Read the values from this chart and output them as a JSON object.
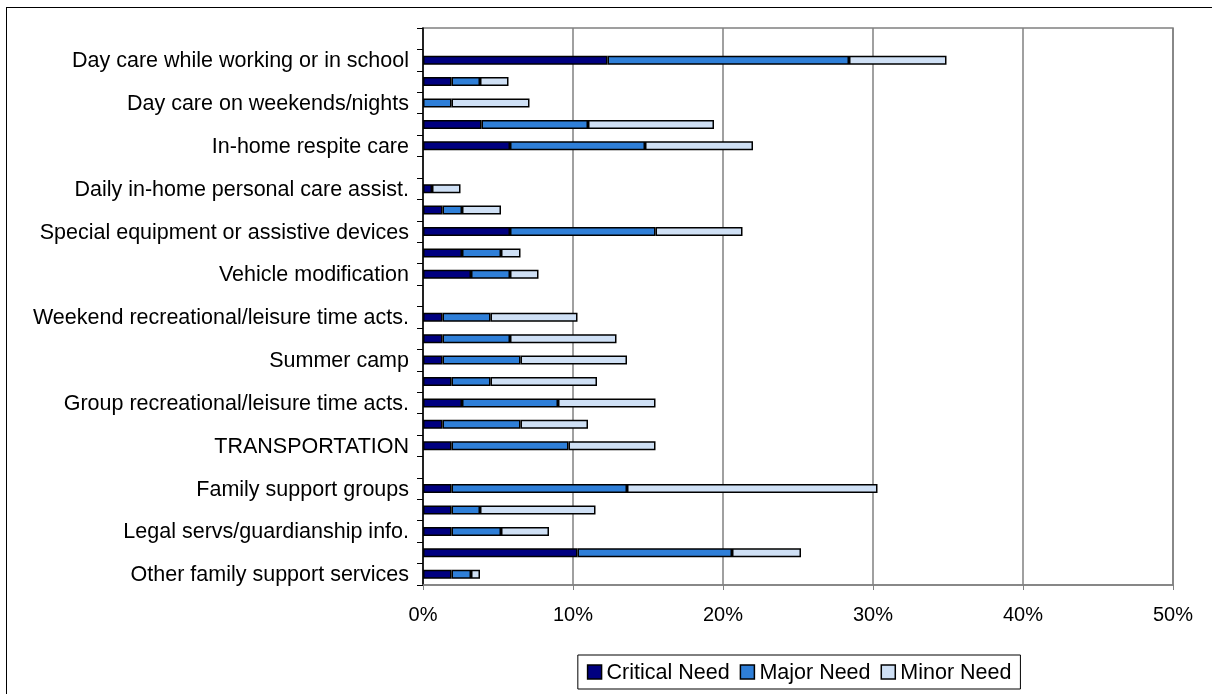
{
  "chart_data": {
    "type": "bar",
    "orientation": "horizontal",
    "stacked": true,
    "categories": [
      null,
      "Day care while working or in school",
      null,
      "Day care on weekends/nights",
      null,
      "In-home respite care",
      null,
      "Daily in-home personal care assist.",
      null,
      "Special equipment or assistive devices",
      null,
      "Vehicle modification",
      null,
      "Weekend recreational/leisure time acts.",
      null,
      "Summer camp",
      null,
      "Group recreational/leisure time acts.",
      null,
      "TRANSPORTATION",
      null,
      "Family support groups",
      null,
      "Legal servs/guardianship info.",
      null,
      "Other family support services"
    ],
    "series": [
      {
        "name": "Critical Need",
        "color": "#000080",
        "values": [
          null,
          12.3,
          1.9,
          0,
          3.9,
          5.8,
          null,
          0.6,
          1.3,
          5.8,
          2.6,
          3.2,
          null,
          1.3,
          1.3,
          1.3,
          1.9,
          2.6,
          1.3,
          1.9,
          null,
          1.9,
          1.9,
          1.9,
          10.3,
          1.9
        ]
      },
      {
        "name": "Major Need",
        "color": "#2f7fd8",
        "values": [
          null,
          16.1,
          1.9,
          1.9,
          7.1,
          9.0,
          null,
          0,
          1.3,
          9.7,
          2.6,
          2.6,
          null,
          3.2,
          4.5,
          5.2,
          2.6,
          6.4,
          5.2,
          7.8,
          null,
          11.7,
          1.9,
          3.3,
          10.3,
          1.3
        ]
      },
      {
        "name": "Minor Need",
        "color": "#cfe0f5",
        "values": [
          null,
          6.5,
          1.9,
          5.2,
          8.4,
          7.2,
          null,
          1.9,
          2.6,
          5.8,
          1.3,
          1.9,
          null,
          5.8,
          7.1,
          7.1,
          7.1,
          6.5,
          4.5,
          5.8,
          null,
          16.7,
          7.7,
          3.2,
          4.6,
          0.6
        ]
      }
    ],
    "xlim": [
      0,
      50
    ],
    "xticks": [
      {
        "value": 0,
        "label": "0%"
      },
      {
        "value": 10,
        "label": "10%"
      },
      {
        "value": 20,
        "label": "20%"
      },
      {
        "value": 30,
        "label": "30%"
      },
      {
        "value": 40,
        "label": "40%"
      },
      {
        "value": 50,
        "label": "50%"
      }
    ],
    "grid": "x",
    "legend": "bottom"
  }
}
